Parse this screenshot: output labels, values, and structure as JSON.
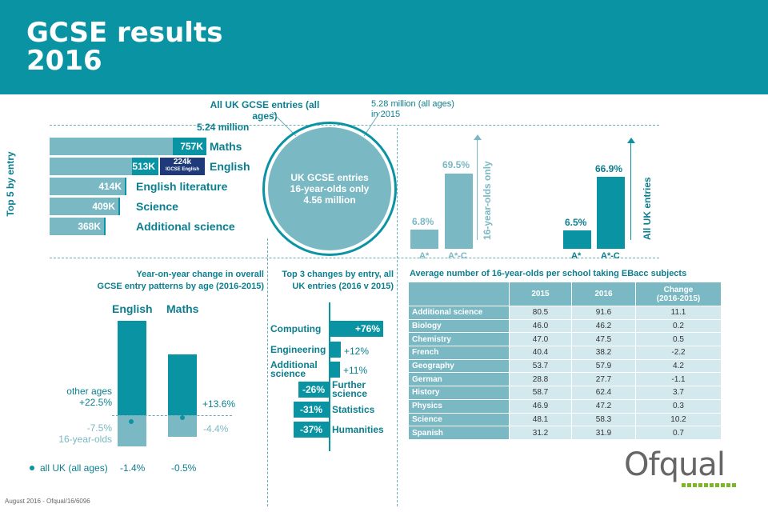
{
  "header": {
    "title_line1": "GCSE results",
    "title_line2": "2016"
  },
  "entries": {
    "all_uk_label": "All UK GCSE entries (all ages)",
    "all_uk_value": "5.24 million",
    "prev_label": "5.28 million (all ages)",
    "prev_year": "in 2015",
    "circle_line1": "UK GCSE entries",
    "circle_line2": "16-year-olds only",
    "circle_line3": "4.56 million"
  },
  "top5": {
    "axis_label": "Top 5 by entry",
    "items": [
      {
        "subject": "Maths",
        "value": "757K"
      },
      {
        "subject": "English",
        "value": "513K",
        "extra_value": "224k",
        "extra_label": "IGCSE English"
      },
      {
        "subject": "English literature",
        "value": "414K"
      },
      {
        "subject": "Science",
        "value": "409K"
      },
      {
        "subject": "Additional science",
        "value": "368K"
      }
    ]
  },
  "grades": {
    "sixteen_label": "16-year-olds only",
    "all_label": "All UK entries",
    "sixteen": {
      "astar": "6.8%",
      "astar_c": "69.5%"
    },
    "all": {
      "astar": "6.5%",
      "astar_c": "66.9%"
    },
    "cat_astar": "A*",
    "cat_astar_c": "A*-C"
  },
  "yoy": {
    "title_line1": "Year-on-year change in overall",
    "title_line2": "GCSE entry patterns by age (2016-2015)",
    "english_label": "English",
    "maths_label": "Maths",
    "english_other_label": "other ages",
    "english_other": "+22.5%",
    "english_16": "-7.5%",
    "sixteen_label": "16-year-olds",
    "maths_other": "+13.6%",
    "maths_16": "-4.4%",
    "all_uk_label": "all UK (all ages)",
    "english_all": "-1.4%",
    "maths_all": "-0.5%"
  },
  "top3": {
    "title_line1": "Top 3 changes by entry, all",
    "title_line2": "UK entries (2016 v 2015)",
    "items": [
      {
        "subject": "Computing",
        "value": "+76%"
      },
      {
        "subject": "Engineering",
        "value": "+12%"
      },
      {
        "subject_line1": "Additional",
        "subject_line2": "science",
        "value": "+11%"
      },
      {
        "subject_line1": "Further",
        "subject_line2": "science",
        "value": "-26%"
      },
      {
        "subject": "Statistics",
        "value": "-31%"
      },
      {
        "subject": "Humanities",
        "value": "-37%"
      }
    ]
  },
  "ebacc": {
    "title": "Average number of 16-year-olds per school taking EBacc subjects",
    "headers": [
      "2015",
      "2016",
      "Change",
      "(2016-2015)"
    ],
    "rows": [
      [
        "Additional science",
        "80.5",
        "91.6",
        "11.1"
      ],
      [
        "Biology",
        "46.0",
        "46.2",
        "0.2"
      ],
      [
        "Chemistry",
        "47.0",
        "47.5",
        "0.5"
      ],
      [
        "French",
        "40.4",
        "38.2",
        "-2.2"
      ],
      [
        "Geography",
        "53.7",
        "57.9",
        "4.2"
      ],
      [
        "German",
        "28.8",
        "27.7",
        "-1.1"
      ],
      [
        "History",
        "58.7",
        "62.4",
        "3.7"
      ],
      [
        "Physics",
        "46.9",
        "47.2",
        "0.3"
      ],
      [
        "Science",
        "48.1",
        "58.3",
        "10.2"
      ],
      [
        "Spanish",
        "31.2",
        "31.9",
        "0.7"
      ]
    ]
  },
  "logo": "Ofqual",
  "footer": "August 2016 - Ofqual/16/6096",
  "colors": {
    "teal": "#0a93a3",
    "light_teal": "#7ab9c4",
    "navy": "#1f3a7a",
    "green": "#7ab829"
  },
  "chart_data": [
    {
      "type": "bar",
      "orientation": "horizontal",
      "ylabel": "Top 5 by entry",
      "categories": [
        "Maths",
        "English",
        "English literature",
        "Science",
        "Additional science"
      ],
      "series": [
        {
          "values": [
            757,
            513,
            414,
            409,
            368
          ]
        },
        {
          "name": "IGCSE English",
          "values": [
            0,
            224,
            0,
            0,
            0
          ]
        }
      ]
    },
    {
      "type": "bar",
      "categories": [
        "A*",
        "A*-C"
      ],
      "series": [
        {
          "name": "16-year-olds only",
          "values": [
            6.8,
            69.5
          ]
        },
        {
          "name": "All UK entries",
          "values": [
            6.5,
            66.9
          ]
        }
      ]
    },
    {
      "type": "bar",
      "title": "Year-on-year change in overall GCSE entry patterns by age (2016-2015)",
      "categories": [
        "English",
        "Maths"
      ],
      "series": [
        {
          "name": "other ages",
          "values": [
            22.5,
            13.6
          ]
        },
        {
          "name": "16-year-olds",
          "values": [
            -7.5,
            -4.4
          ]
        },
        {
          "name": "all UK (all ages)",
          "values": [
            -1.4,
            -0.5
          ]
        }
      ]
    },
    {
      "type": "bar",
      "orientation": "horizontal",
      "title": "Top 3 changes by entry, all UK entries (2016 v 2015)",
      "categories": [
        "Computing",
        "Engineering",
        "Additional science",
        "Further science",
        "Statistics",
        "Humanities"
      ],
      "values": [
        76,
        12,
        11,
        -26,
        -31,
        -37
      ]
    },
    {
      "type": "table",
      "title": "Average number of 16-year-olds per school taking EBacc subjects",
      "columns": [
        "2015",
        "2016",
        "Change (2016-2015)"
      ],
      "rows": [
        [
          "Additional science",
          80.5,
          91.6,
          11.1
        ],
        [
          "Biology",
          46.0,
          46.2,
          0.2
        ],
        [
          "Chemistry",
          47.0,
          47.5,
          0.5
        ],
        [
          "French",
          40.4,
          38.2,
          -2.2
        ],
        [
          "Geography",
          53.7,
          57.9,
          4.2
        ],
        [
          "German",
          28.8,
          27.7,
          -1.1
        ],
        [
          "History",
          58.7,
          62.4,
          3.7
        ],
        [
          "Physics",
          46.9,
          47.2,
          0.3
        ],
        [
          "Science",
          48.1,
          58.3,
          10.2
        ],
        [
          "Spanish",
          31.2,
          31.9,
          0.7
        ]
      ]
    }
  ]
}
